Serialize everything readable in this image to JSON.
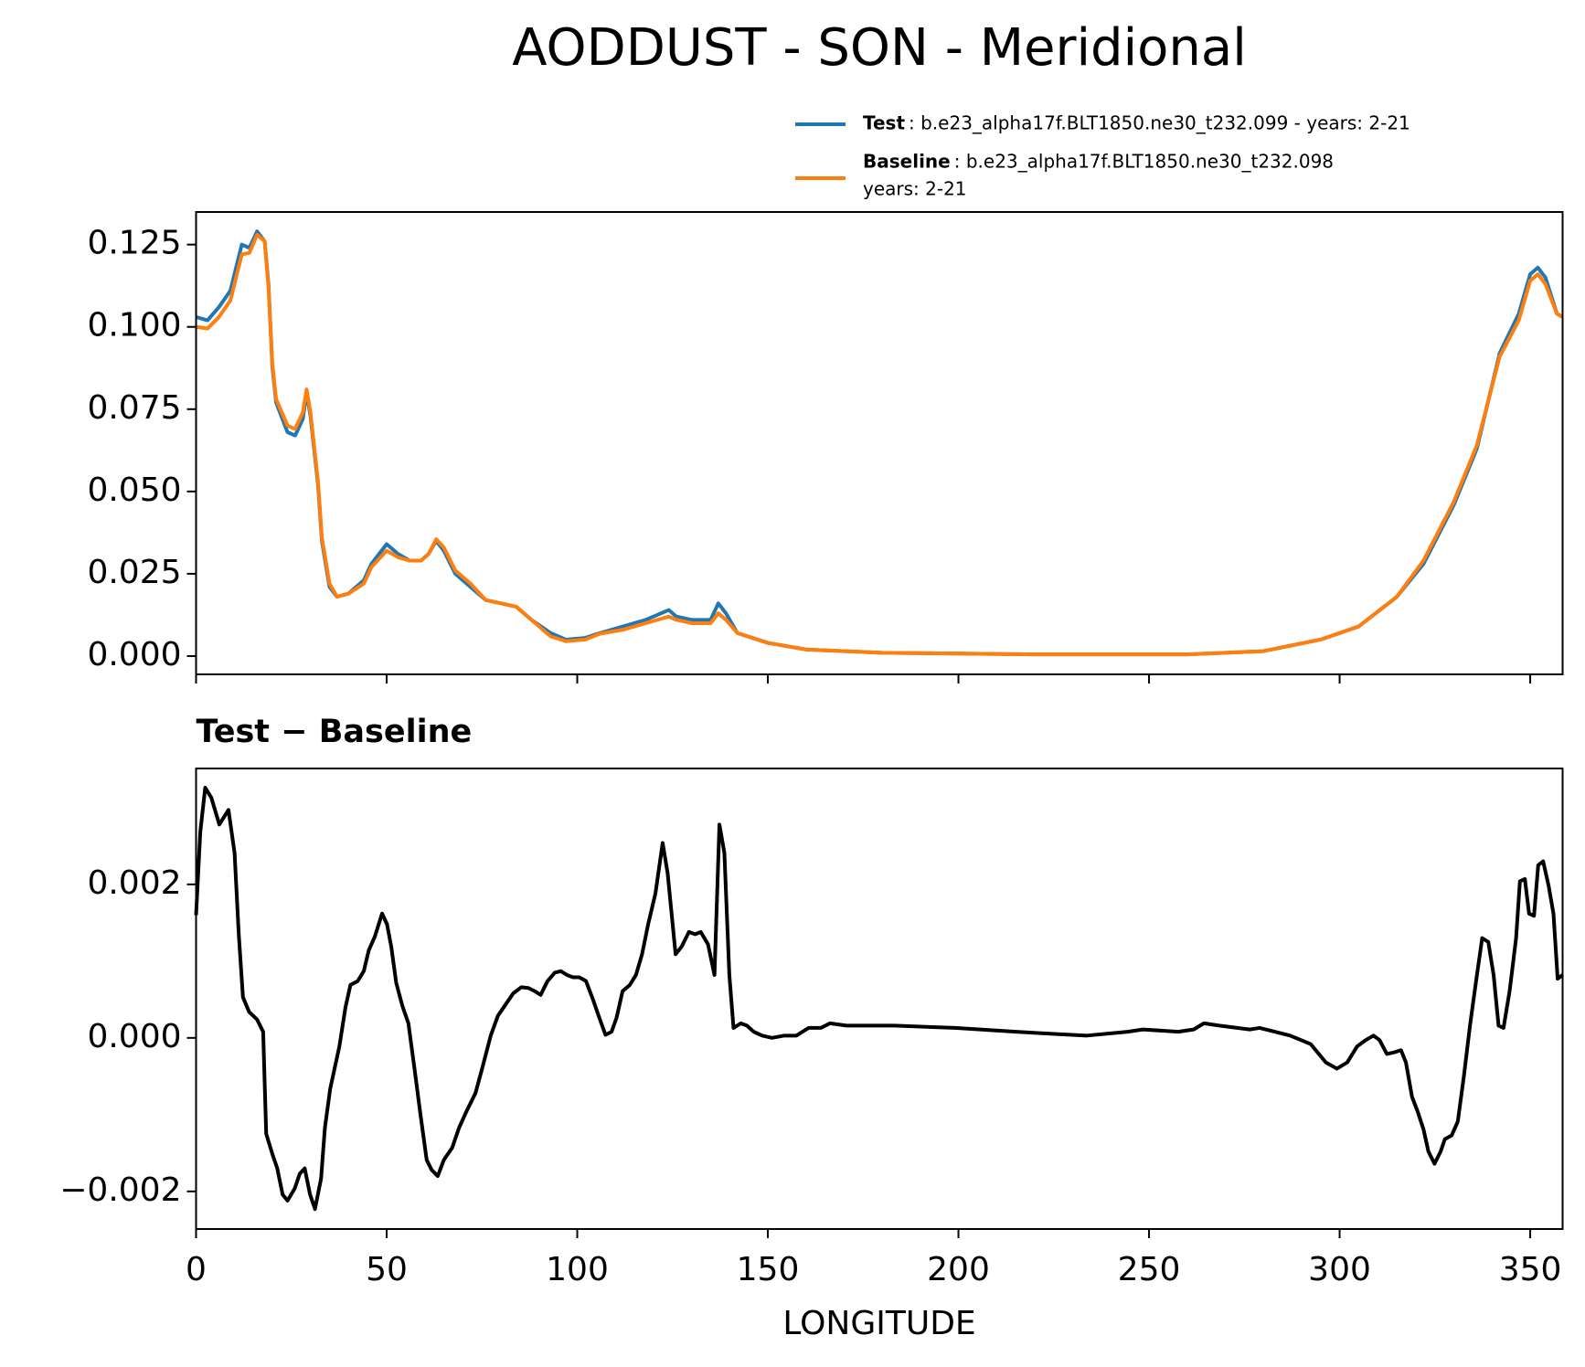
{
  "chart_data": [
    {
      "type": "line",
      "title": "AODDUST - SON - Meridional",
      "x": [
        0,
        3,
        6,
        9,
        12,
        14,
        16,
        18,
        19,
        20,
        21,
        24,
        26,
        28,
        29,
        30,
        32,
        33,
        35,
        37,
        40,
        44,
        46,
        50,
        53,
        56,
        59,
        61,
        63,
        65,
        68,
        72,
        76,
        80,
        84,
        88,
        93,
        97,
        102,
        106,
        112,
        118,
        124,
        126,
        130,
        135,
        137,
        139,
        142,
        150,
        160,
        180,
        220,
        260,
        280,
        295,
        305,
        315,
        322,
        330,
        336,
        342,
        347,
        350,
        352,
        354,
        357,
        358.5
      ],
      "series": [
        {
          "name": "Test",
          "label": [
            ": b.e23_alpha17f.BLT1850.ne30_t232.099 - years: 2-21"
          ],
          "color": "#1f77b4",
          "values": [
            0.103,
            0.102,
            0.106,
            0.111,
            0.125,
            0.124,
            0.129,
            0.126,
            0.113,
            0.088,
            0.077,
            0.068,
            0.067,
            0.072,
            0.08,
            0.073,
            0.052,
            0.035,
            0.021,
            0.018,
            0.019,
            0.023,
            0.028,
            0.034,
            0.031,
            0.029,
            0.029,
            0.031,
            0.035,
            0.032,
            0.025,
            0.021,
            0.017,
            0.016,
            0.015,
            0.011,
            0.007,
            0.005,
            0.0055,
            0.007,
            0.009,
            0.011,
            0.014,
            0.012,
            0.011,
            0.011,
            0.016,
            0.013,
            0.007,
            0.004,
            0.002,
            0.001,
            0.0005,
            0.0005,
            0.0015,
            0.005,
            0.009,
            0.018,
            0.028,
            0.046,
            0.063,
            0.092,
            0.104,
            0.116,
            0.118,
            0.115,
            0.104,
            0.103
          ]
        },
        {
          "name": "Baseline",
          "label": [
            ": b.e23_alpha17f.BLT1850.ne30_t232.098",
            "years: 2-21"
          ],
          "color": "#ff7f0e",
          "values": [
            0.1,
            0.0995,
            0.103,
            0.108,
            0.122,
            0.1225,
            0.128,
            0.126,
            0.112,
            0.089,
            0.078,
            0.07,
            0.069,
            0.074,
            0.081,
            0.074,
            0.053,
            0.036,
            0.022,
            0.018,
            0.019,
            0.022,
            0.027,
            0.032,
            0.03,
            0.029,
            0.029,
            0.031,
            0.0355,
            0.033,
            0.026,
            0.022,
            0.017,
            0.016,
            0.015,
            0.011,
            0.006,
            0.0045,
            0.005,
            0.0068,
            0.008,
            0.01,
            0.012,
            0.011,
            0.01,
            0.01,
            0.013,
            0.011,
            0.007,
            0.004,
            0.002,
            0.001,
            0.0005,
            0.0005,
            0.0015,
            0.005,
            0.009,
            0.018,
            0.029,
            0.047,
            0.064,
            0.091,
            0.102,
            0.114,
            0.116,
            0.113,
            0.104,
            0.103
          ]
        }
      ],
      "xlim": [
        0,
        358.5
      ],
      "xticks": [
        0,
        50,
        100,
        150,
        200,
        250,
        300,
        350
      ],
      "ylim": [
        -0.00556,
        0.1349
      ],
      "yticks": [
        {
          "value": 0,
          "label": "0.000"
        },
        0.025,
        {
          "value": 0.05,
          "label": "0.050"
        },
        0.075,
        {
          "value": 0.1,
          "label": "0.100"
        },
        0.125
      ]
    },
    {
      "type": "line",
      "title": "Test − Baseline",
      "x_label": "LONGITUDE",
      "x": [
        0,
        1.1,
        2.4,
        4,
        6.1,
        8.5,
        10.1,
        11.2,
        12.3,
        13.9,
        16,
        17.6,
        18.4,
        20,
        21.3,
        22.7,
        24,
        25.9,
        27.2,
        28.5,
        29.9,
        31.2,
        32.8,
        33.8,
        35.2,
        37.6,
        39.2,
        40.5,
        42.4,
        44,
        45.3,
        46.9,
        48.8,
        50.1,
        51.2,
        52.5,
        54.1,
        55.7,
        57.3,
        58.9,
        60.5,
        61.8,
        63.4,
        65,
        67.2,
        69,
        71.2,
        73.3,
        75.2,
        77.3,
        79.2,
        81,
        83.2,
        85.3,
        87.2,
        88.8,
        90.4,
        92.2,
        94.1,
        95.7,
        97.3,
        98.9,
        100.5,
        102.3,
        104.2,
        105.8,
        107.4,
        109,
        110.3,
        111.9,
        113.8,
        115.4,
        117,
        118.6,
        120.5,
        122.4,
        123.7,
        125.8,
        127.4,
        129.3,
        130.9,
        132.4,
        134.3,
        136,
        137.3,
        138.6,
        139.9,
        141,
        142.9,
        144.5,
        146.3,
        148.5,
        151.1,
        154.3,
        157.5,
        159.1,
        160.7,
        163.9,
        166.3,
        170.6,
        183.1,
        199.1,
        215.1,
        225.7,
        233.7,
        244.4,
        248.4,
        257.7,
        261.7,
        264.4,
        268.4,
        276.4,
        279,
        283,
        287,
        292.4,
        296.4,
        299.3,
        302,
        304.6,
        306.8,
        308.9,
        310.5,
        312.4,
        314.2,
        316.1,
        317.4,
        319,
        320.4,
        322,
        323.3,
        324.9,
        326.5,
        327.6,
        329.4,
        331,
        332.6,
        334.2,
        335.8,
        337.4,
        339,
        340.4,
        341.7,
        343,
        344.6,
        346.3,
        347.3,
        348.6,
        349.7,
        351,
        352.1,
        353.4,
        354.8,
        356.1,
        357.2,
        358.5
      ],
      "series": [
        {
          "color": "#000000",
          "values": [
            0.0016,
            0.00268,
            0.00326,
            0.00313,
            0.00278,
            0.00297,
            0.00241,
            0.00135,
            0.00053,
            0.00034,
            0.00024,
            8e-05,
            -0.00125,
            -0.00151,
            -0.0017,
            -0.00204,
            -0.00212,
            -0.00196,
            -0.00177,
            -0.0017,
            -0.00204,
            -0.00223,
            -0.00183,
            -0.00117,
            -0.00066,
            -0.00011,
            0.0004,
            0.00069,
            0.00074,
            0.00087,
            0.00114,
            0.00132,
            0.00162,
            0.00148,
            0.00119,
            0.00072,
            0.00042,
            0.00019,
            -0.0004,
            -0.00101,
            -0.00159,
            -0.00172,
            -0.0018,
            -0.00159,
            -0.00143,
            -0.00117,
            -0.00093,
            -0.00072,
            -0.00037,
            3e-05,
            0.00029,
            0.00042,
            0.00058,
            0.00066,
            0.00065,
            0.00061,
            0.00056,
            0.00074,
            0.00085,
            0.00087,
            0.00082,
            0.00079,
            0.00079,
            0.00074,
            0.00049,
            0.00026,
            4e-05,
            8e-05,
            0.00026,
            0.00061,
            0.00069,
            0.00082,
            0.00109,
            0.00148,
            0.00188,
            0.00254,
            0.00215,
            0.00109,
            0.00119,
            0.00138,
            0.00135,
            0.00138,
            0.00122,
            0.00082,
            0.00278,
            0.00241,
            0.00082,
            0.00013,
            0.00019,
            0.00016,
            8e-05,
            3e-05,
            0,
            3e-05,
            3e-05,
            8e-05,
            0.00013,
            0.00013,
            0.00019,
            0.00016,
            0.00016,
            0.00013,
            8e-05,
            5e-05,
            3e-05,
            8e-05,
            0.00011,
            8e-05,
            0.00011,
            0.00019,
            0.00016,
            0.00011,
            0.00013,
            8e-05,
            3e-05,
            -8e-05,
            -0.00032,
            -0.0004,
            -0.00032,
            -0.00011,
            -3e-05,
            3e-05,
            -3e-05,
            -0.00021,
            -0.00019,
            -0.00016,
            -0.00032,
            -0.00077,
            -0.00095,
            -0.00119,
            -0.00148,
            -0.00164,
            -0.00148,
            -0.00132,
            -0.00127,
            -0.00109,
            -0.0005,
            0.00016,
            0.00074,
            0.0013,
            0.00125,
            0.00082,
            0.00016,
            0.00013,
            0.00061,
            0.0013,
            0.00204,
            0.00207,
            0.00162,
            0.00159,
            0.00225,
            0.0023,
            0.00199,
            0.00162,
            0.00077,
            0.00082
          ]
        }
      ],
      "xlim": [
        0,
        358.5
      ],
      "xticks": [
        0,
        50,
        100,
        150,
        200,
        250,
        300,
        350
      ],
      "ylim": [
        -0.00249,
        0.00351
      ],
      "yticks": [
        {
          "value": -0.002,
          "label": "−0.002"
        },
        {
          "value": 0,
          "label": "0.000"
        },
        0.002
      ]
    }
  ]
}
